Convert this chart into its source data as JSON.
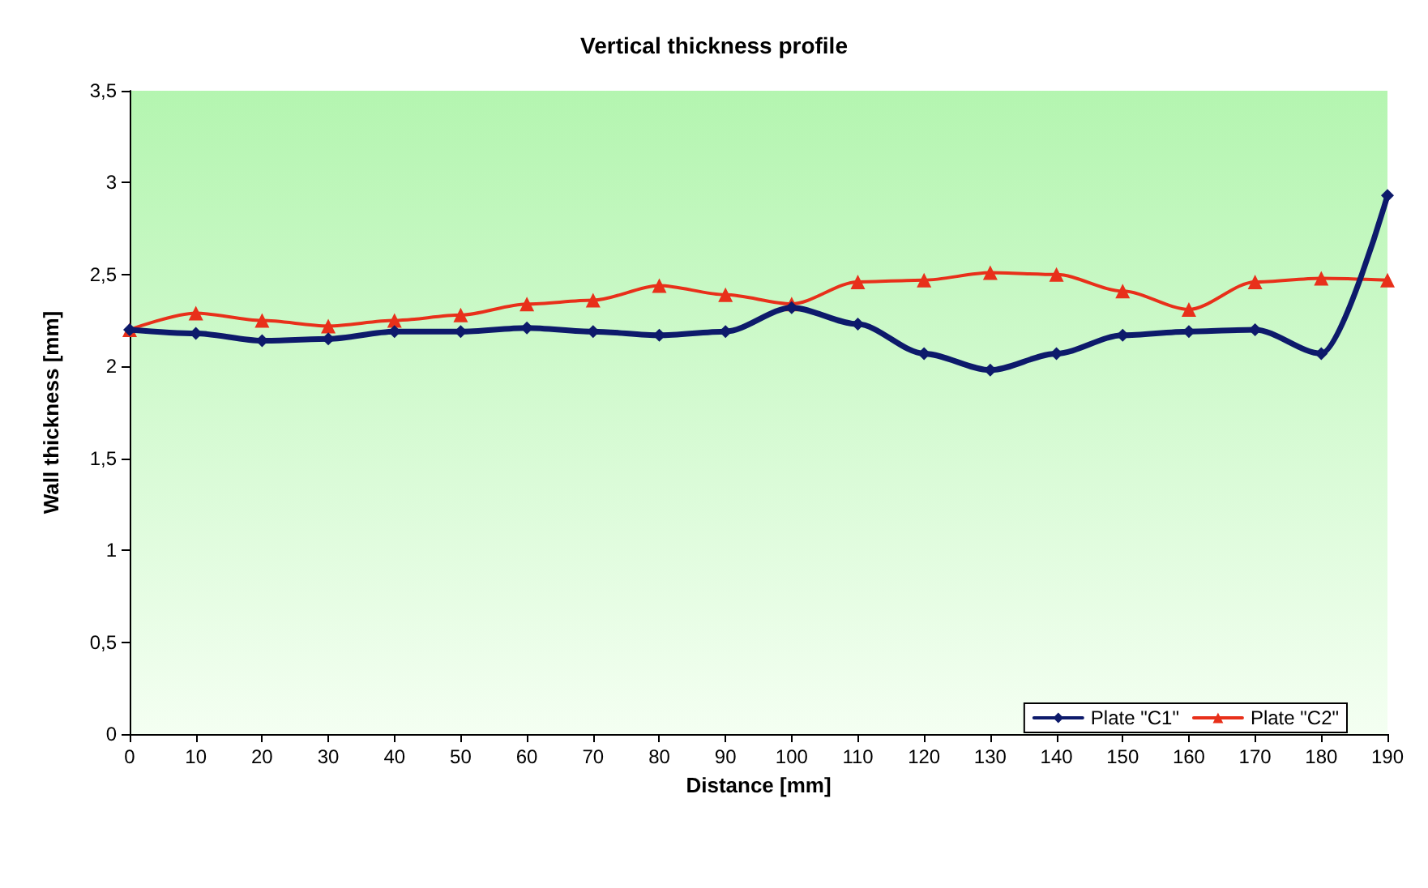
{
  "chart_data": {
    "type": "line",
    "title": "Vertical thickness profile",
    "xlabel": "Distance [mm]",
    "ylabel": "Wall thickness [mm]",
    "x": [
      0,
      10,
      20,
      30,
      40,
      50,
      60,
      70,
      80,
      90,
      100,
      110,
      120,
      130,
      140,
      150,
      160,
      170,
      180,
      190
    ],
    "series": [
      {
        "name": "Plate \"C1\"",
        "color": "#0d1a6b",
        "marker": "diamond",
        "values": [
          2.2,
          2.18,
          2.14,
          2.15,
          2.19,
          2.19,
          2.21,
          2.19,
          2.17,
          2.19,
          2.32,
          2.23,
          2.07,
          1.98,
          2.07,
          2.17,
          2.19,
          2.2,
          2.07,
          2.93
        ]
      },
      {
        "name": "Plate \"C2\"",
        "color": "#e8301a",
        "marker": "triangle",
        "values": [
          2.2,
          2.29,
          2.25,
          2.22,
          2.25,
          2.28,
          2.34,
          2.36,
          2.44,
          2.39,
          2.34,
          2.46,
          2.47,
          2.51,
          2.5,
          2.41,
          2.31,
          2.46,
          2.48,
          2.47
        ]
      }
    ],
    "xlim": [
      0,
      190
    ],
    "xticks": [
      0,
      10,
      20,
      30,
      40,
      50,
      60,
      70,
      80,
      90,
      100,
      110,
      120,
      130,
      140,
      150,
      160,
      170,
      180,
      190
    ],
    "ylim": [
      0,
      3.5
    ],
    "yticks": [
      0,
      {
        "value": 0.5,
        "label": "0,5"
      },
      1,
      {
        "value": 1.5,
        "label": "1,5"
      },
      2,
      {
        "value": 2.5,
        "label": "2,5"
      },
      3,
      {
        "value": 3.5,
        "label": "3,5"
      }
    ],
    "grid": false,
    "legend": "bottom right",
    "line_style": "solid"
  }
}
